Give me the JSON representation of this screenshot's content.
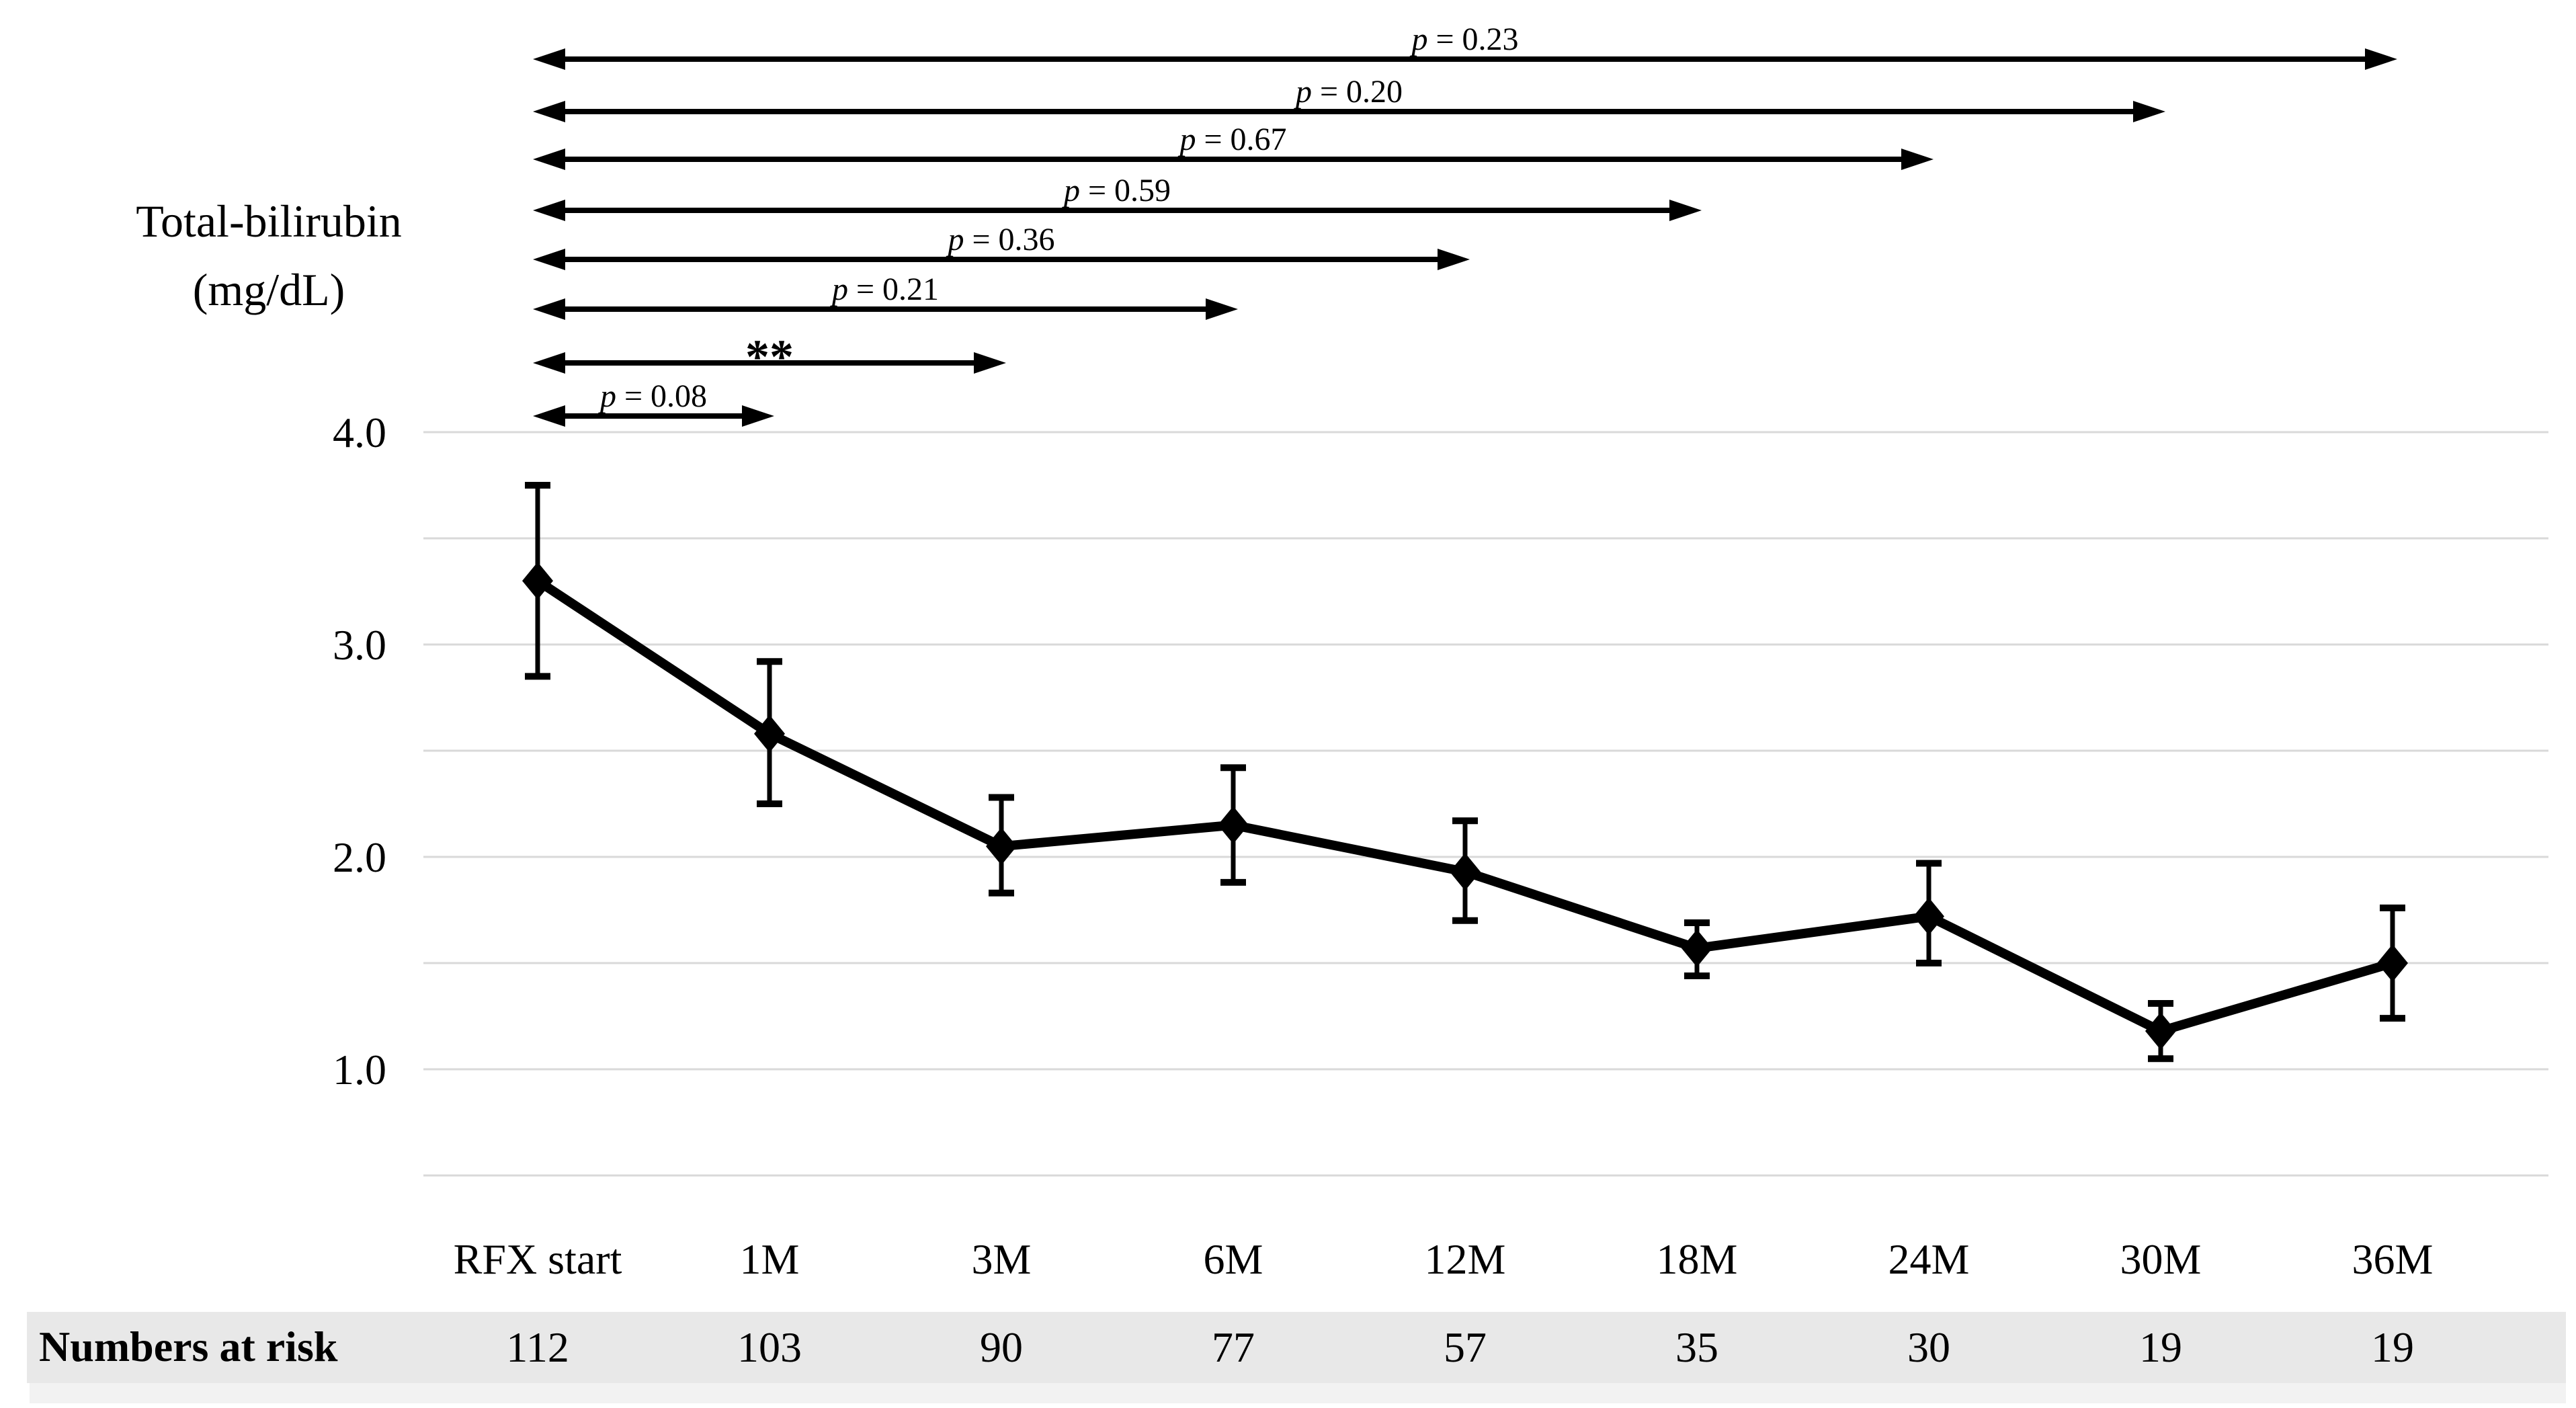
{
  "figure": {
    "y_axis_title_line1": "Total-bilirubin",
    "y_axis_title_line2": "(mg/dL)"
  },
  "colors": {
    "background": "#ffffff",
    "foreground": "#000000",
    "gridline": "#d9d9d9",
    "risk_band": "#e8e8e8",
    "risk_band_edge": "#f2f2f2"
  },
  "chart_data": {
    "type": "line",
    "title": "",
    "xlabel": "",
    "ylabel": "Total-bilirubin (mg/dL)",
    "categories": [
      "RFX start",
      "1M",
      "3M",
      "6M",
      "12M",
      "18M",
      "24M",
      "30M",
      "36M"
    ],
    "series": [
      {
        "name": "Total-bilirubin (mg/dL)",
        "values": [
          3.3,
          2.58,
          2.05,
          2.15,
          1.93,
          1.57,
          1.72,
          1.18,
          1.5
        ],
        "error_low": [
          2.85,
          2.25,
          1.83,
          1.88,
          1.7,
          1.44,
          1.5,
          1.05,
          1.24
        ],
        "error_high": [
          3.75,
          2.92,
          2.28,
          2.42,
          2.17,
          1.69,
          1.97,
          1.31,
          1.76
        ]
      }
    ],
    "marker": "diamond",
    "line_color": "#000000",
    "grid": true,
    "gridline_step": 0.5,
    "ylim": [
      0.5,
      4.0
    ],
    "y_ticks": [
      4.0,
      3.0,
      2.0,
      1.0
    ],
    "y_tick_labels": [
      "4.0",
      "3.0",
      "2.0",
      "1.0"
    ],
    "legend": "none",
    "numbers_at_risk": {
      "label": "Numbers at risk",
      "values": [
        112,
        103,
        90,
        77,
        57,
        35,
        30,
        19,
        19
      ]
    },
    "comparisons": [
      {
        "label": "p = 0.23",
        "from": "RFX start",
        "to": "36M"
      },
      {
        "label": "p = 0.20",
        "from": "RFX start",
        "to": "30M"
      },
      {
        "label": "p = 0.67",
        "from": "RFX start",
        "to": "24M"
      },
      {
        "label": "p = 0.59",
        "from": "RFX start",
        "to": "18M"
      },
      {
        "label": "p = 0.36",
        "from": "RFX start",
        "to": "12M"
      },
      {
        "label": "p = 0.21",
        "from": "RFX start",
        "to": "6M"
      },
      {
        "label": "**",
        "from": "RFX start",
        "to": "3M"
      },
      {
        "label": "p = 0.08",
        "from": "RFX start",
        "to": "1M"
      }
    ]
  }
}
